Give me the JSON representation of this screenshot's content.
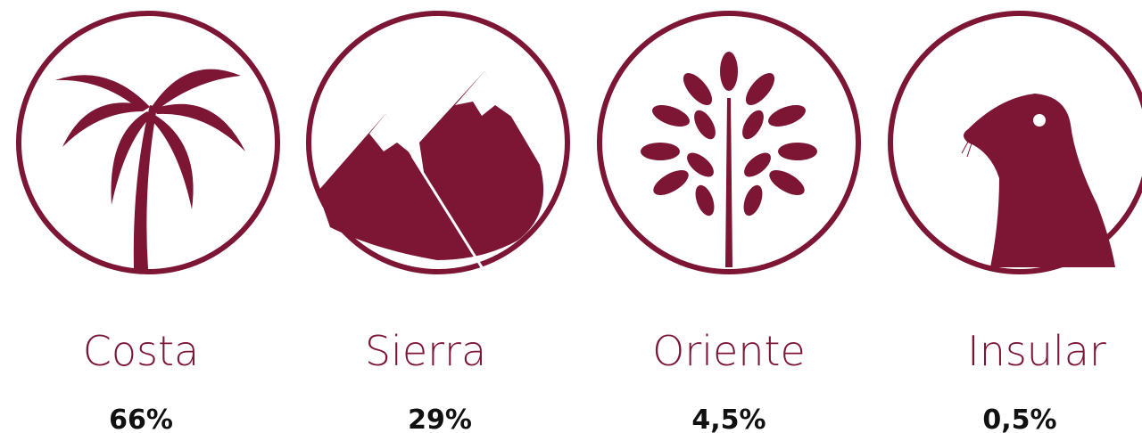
{
  "items": [
    {
      "label": "Costa",
      "value": "66%"
    },
    {
      "label": "Sierra",
      "value": "29%"
    },
    {
      "label": "Oriente",
      "value": "4,5%"
    },
    {
      "label": "Insular",
      "value": "0,5%"
    }
  ]
}
